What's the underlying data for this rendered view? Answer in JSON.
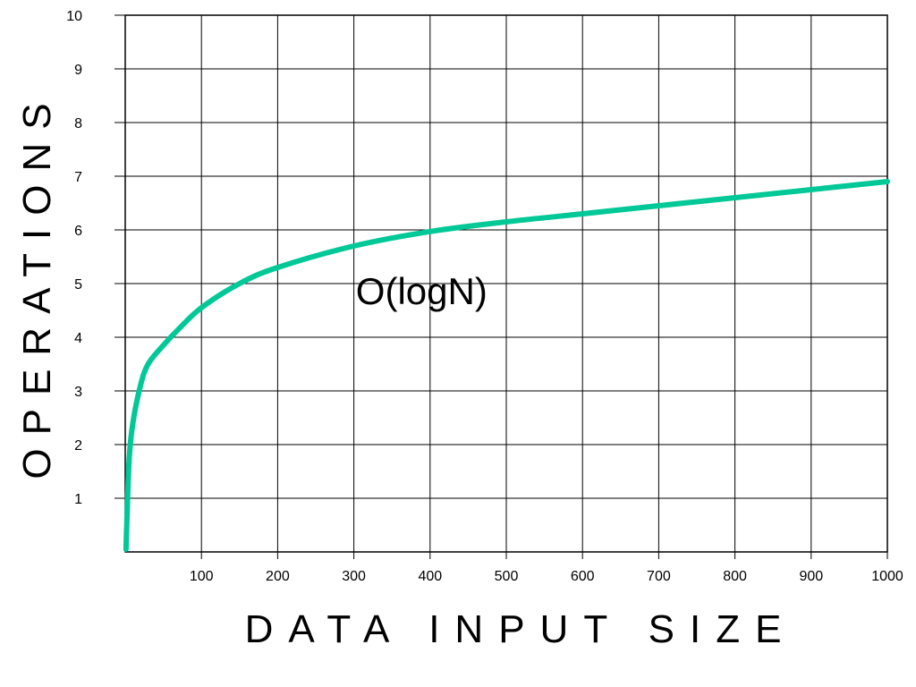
{
  "chart_data": {
    "type": "line",
    "title": "",
    "xlabel": "DATA INPUT SIZE",
    "ylabel": "OPERATIONS",
    "xlim": [
      0,
      1000
    ],
    "ylim": [
      0,
      10
    ],
    "x_ticks": [
      100,
      200,
      300,
      400,
      500,
      600,
      700,
      800,
      900,
      1000
    ],
    "y_ticks": [
      1,
      2,
      3,
      4,
      5,
      6,
      7,
      8,
      9,
      10
    ],
    "grid": true,
    "legend": "none",
    "annotation": {
      "text": "O(logN)",
      "x": 400,
      "y": 4.85
    },
    "series": [
      {
        "color": "#00c896",
        "x": [
          1,
          2,
          5,
          10,
          20,
          30,
          50,
          70,
          100,
          150,
          200,
          300,
          400,
          500,
          600,
          700,
          800,
          900,
          1000
        ],
        "y": [
          0.05,
          0.5,
          1.7,
          2.4,
          3.1,
          3.5,
          3.85,
          4.15,
          4.55,
          5.0,
          5.3,
          5.7,
          5.97,
          6.15,
          6.3,
          6.45,
          6.6,
          6.75,
          6.9
        ]
      }
    ]
  }
}
